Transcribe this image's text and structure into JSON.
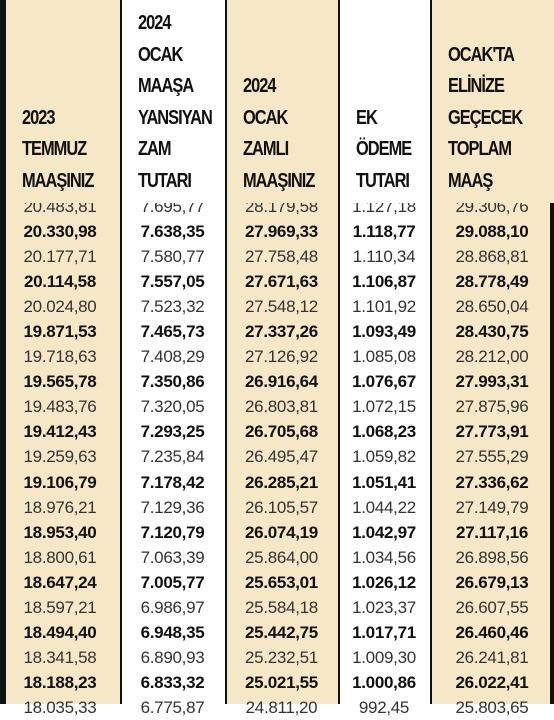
{
  "table": {
    "headers": [
      [
        "2023",
        "TEMMUZ",
        "MAAŞINIZ"
      ],
      [
        "2024",
        "OCAK",
        "MAAŞA",
        "YANSIYAN",
        "ZAM",
        "TUTARI"
      ],
      [
        "2024",
        "OCAK",
        "ZAMLI",
        "MAAŞINIZ"
      ],
      [
        "EK",
        "ÖDEME",
        "TUTARI"
      ],
      [
        "OCAK'TA",
        "ELİNİZE",
        "GEÇECEK",
        "TOPLAM",
        "MAAŞ"
      ]
    ],
    "rows": [
      [
        "20.483,81",
        "7.695,77",
        "28.179,58",
        "1.127,18",
        "29.306,76"
      ],
      [
        "20.330,98",
        "7.638,35",
        "27.969,33",
        "1.118,77",
        "29.088,10"
      ],
      [
        "20.177,71",
        "7.580,77",
        "27.758,48",
        "1.110,34",
        "28.868,81"
      ],
      [
        "20.114,58",
        "7.557,05",
        "27.671,63",
        "1.106,87",
        "28.778,49"
      ],
      [
        "20.024,80",
        "7.523,32",
        "27.548,12",
        "1.101,92",
        "28.650,04"
      ],
      [
        "19.871,53",
        "7.465,73",
        "27.337,26",
        "1.093,49",
        "28.430,75"
      ],
      [
        "19.718,63",
        "7.408,29",
        "27.126,92",
        "1.085,08",
        "28.212,00"
      ],
      [
        "19.565,78",
        "7.350,86",
        "26.916,64",
        "1.076,67",
        "27.993,31"
      ],
      [
        "19.483,76",
        "7.320,05",
        "26.803,81",
        "1.072,15",
        "27.875,96"
      ],
      [
        "19.412,43",
        "7.293,25",
        "26.705,68",
        "1.068,23",
        "27.773,91"
      ],
      [
        "19.259,63",
        "7.235,84",
        "26.495,47",
        "1.059,82",
        "27.555,29"
      ],
      [
        "19.106,79",
        "7.178,42",
        "26.285,21",
        "1.051,41",
        "27.336,62"
      ],
      [
        "18.976,21",
        "7.129,36",
        "26.105,57",
        "1.044,22",
        "27.149,79"
      ],
      [
        "18.953,40",
        "7.120,79",
        "26.074,19",
        "1.042,97",
        "27.117,16"
      ],
      [
        "18.800,61",
        "7.063,39",
        "25.864,00",
        "1.034,56",
        "26.898,56"
      ],
      [
        "18.647,24",
        "7.005,77",
        "25.653,01",
        "1.026,12",
        "26.679,13"
      ],
      [
        "18.597,21",
        "6.986,97",
        "25.584,18",
        "1.023,37",
        "26.607,55"
      ],
      [
        "18.494,40",
        "6.948,35",
        "25.442,75",
        "1.017,71",
        "26.460,46"
      ],
      [
        "18.341,58",
        "6.890,93",
        "25.232,51",
        "1.009,30",
        "26.241,81"
      ],
      [
        "18.188,23",
        "6.833,32",
        "25.021,55",
        "1.000,86",
        "26.022,41"
      ],
      [
        "18.035,33",
        "6.775,87",
        "24.811,20",
        "992,45",
        "25.803,65"
      ]
    ]
  }
}
